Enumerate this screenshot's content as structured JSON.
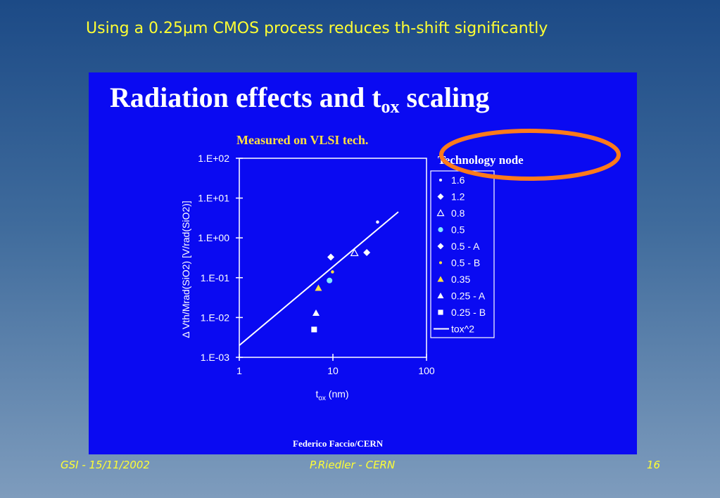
{
  "slide": {
    "headline": "Using a 0.25µm CMOS process reduces th-shift significantly",
    "panel_title_main": "Radiation effects and t",
    "panel_title_sub": "ox",
    "panel_title_tail": " scaling",
    "measured_note": "Measured on VLSI tech.",
    "credit": "Federico Faccio/CERN",
    "footer_left": "GSI - 15/11/2002",
    "footer_center": "P.Riedler - CERN",
    "footer_right": "16"
  },
  "colors": {
    "panel_bg": "#0a0af2",
    "highlight_ellipse": "#ff7a1a",
    "headline": "#ffff33",
    "yellow_series": "#ffe040",
    "cyan_series": "#7fe7ff"
  },
  "chart_data": {
    "type": "scatter",
    "xscale": "log",
    "yscale": "log",
    "xlim": [
      1,
      100
    ],
    "ylim": [
      0.001,
      100
    ],
    "x_tick_labels": [
      "1",
      "10",
      "100"
    ],
    "x_tick_values": [
      1,
      10,
      100
    ],
    "y_tick_labels": [
      "1.E-03",
      "1.E-02",
      "1.E-01",
      "1.E+00",
      "1.E+01",
      "1.E+02"
    ],
    "y_tick_values": [
      0.001,
      0.01,
      0.1,
      1,
      10,
      100
    ],
    "xlabel_main": "t",
    "xlabel_sub": "ox",
    "xlabel_tail": " (nm)",
    "ylabel": "Δ Vth/Mrad(SiO2) [V/rad(SiO2)]",
    "legend_title": "Technology node",
    "legend_position": "right",
    "series": [
      {
        "name": "1.6",
        "marker": "dot",
        "color": "#ffffff",
        "x": [
          30
        ],
        "y": [
          2.5
        ]
      },
      {
        "name": "1.2",
        "marker": "diamond",
        "color": "#ffffff",
        "x": [
          9.5,
          23
        ],
        "y": [
          0.33,
          0.43
        ]
      },
      {
        "name": "0.8",
        "marker": "triangle-open",
        "color": "#ffffff",
        "x": [
          17
        ],
        "y": [
          0.42
        ]
      },
      {
        "name": "0.5",
        "marker": "circle",
        "color": "#7fe7ff",
        "x": [
          9.2
        ],
        "y": [
          0.085
        ]
      },
      {
        "name": "0.5 - A",
        "marker": "diamond",
        "color": "#ffffff",
        "x": [],
        "y": []
      },
      {
        "name": "0.5 - B",
        "marker": "dot",
        "color": "#ffe040",
        "x": [
          9.9
        ],
        "y": [
          0.14
        ]
      },
      {
        "name": "0.35",
        "marker": "triangle",
        "color": "#ffe040",
        "x": [
          7.0
        ],
        "y": [
          0.055
        ]
      },
      {
        "name": "0.25 - A",
        "marker": "triangle",
        "color": "#ffffff",
        "x": [
          6.6
        ],
        "y": [
          0.013
        ]
      },
      {
        "name": "0.25 - B",
        "marker": "square",
        "color": "#ffffff",
        "x": [
          6.3
        ],
        "y": [
          0.005
        ]
      },
      {
        "name": "tox^2",
        "marker": "line",
        "color": "#ffffff",
        "x": [
          1,
          50
        ],
        "y": [
          0.002,
          4.5
        ]
      }
    ]
  }
}
